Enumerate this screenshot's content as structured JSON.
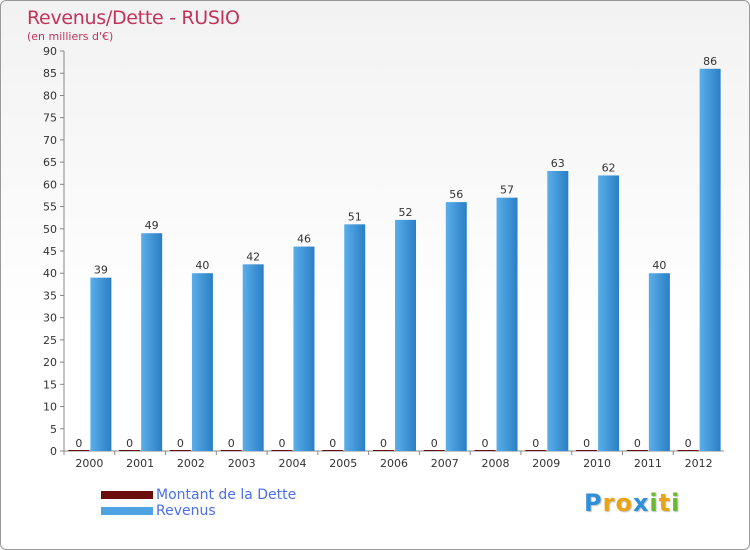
{
  "chart_data": {
    "type": "bar",
    "title": "Revenus/Dette - RUSIO",
    "subtitle": "(en milliers d'€)",
    "categories": [
      "2000",
      "2001",
      "2002",
      "2003",
      "2004",
      "2005",
      "2006",
      "2007",
      "2008",
      "2009",
      "2010",
      "2011",
      "2012"
    ],
    "series": [
      {
        "name": "Montant de la Dette",
        "color": "#6b0d0d",
        "values": [
          0,
          0,
          0,
          0,
          0,
          0,
          0,
          0,
          0,
          0,
          0,
          0,
          0
        ]
      },
      {
        "name": "Revenus",
        "color": "#4fa3e3",
        "values": [
          39,
          49,
          40,
          42,
          46,
          51,
          52,
          56,
          57,
          63,
          62,
          40,
          86
        ]
      }
    ],
    "ylim": [
      0,
      90
    ],
    "ytick_step": 5,
    "grid": false,
    "legend_position": "bottom-left"
  },
  "logo": {
    "letters": [
      "P",
      "r",
      "o",
      "x",
      "i",
      "t",
      "i"
    ],
    "colors": [
      "#2f8fd8",
      "#e8a416",
      "#e8a416",
      "#2f8fd8",
      "#69b92c",
      "#e8a416",
      "#69b92c"
    ]
  }
}
